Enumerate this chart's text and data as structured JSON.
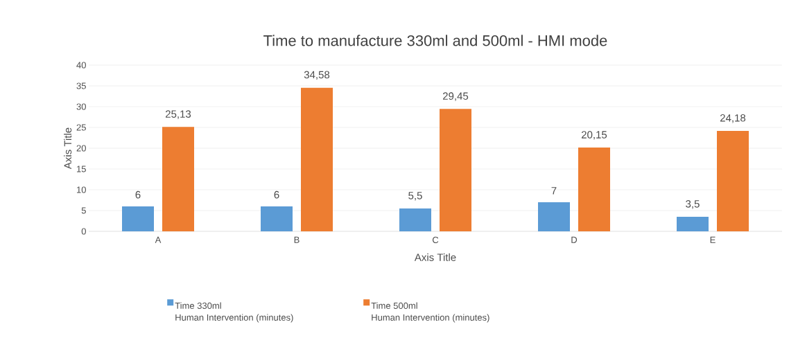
{
  "chart_data": {
    "type": "bar",
    "title": "Time to manufacture 330ml and 500ml - HMI mode",
    "xlabel": "Axis Title",
    "ylabel": "Axis Title",
    "categories": [
      "A",
      "B",
      "C",
      "D",
      "E"
    ],
    "series": [
      {
        "name": "Time 330ml Human Intervention (minutes)",
        "color": "#5b9bd5",
        "values": [
          6,
          6,
          5.5,
          7,
          3.5
        ],
        "value_labels": [
          "6",
          "6",
          "5,5",
          "7",
          "3,5"
        ]
      },
      {
        "name": "Time 500ml Human Intervention (minutes)",
        "color": "#ed7d31",
        "values": [
          25.13,
          34.58,
          29.45,
          20.15,
          24.18
        ],
        "value_labels": [
          "25,13",
          "34,58",
          "29,45",
          "20,15",
          "24,18"
        ]
      }
    ],
    "ylim": [
      0,
      40
    ],
    "yticks": [
      0,
      5,
      10,
      15,
      20,
      25,
      30,
      35,
      40
    ],
    "grid": "y",
    "legend": "bottom"
  }
}
